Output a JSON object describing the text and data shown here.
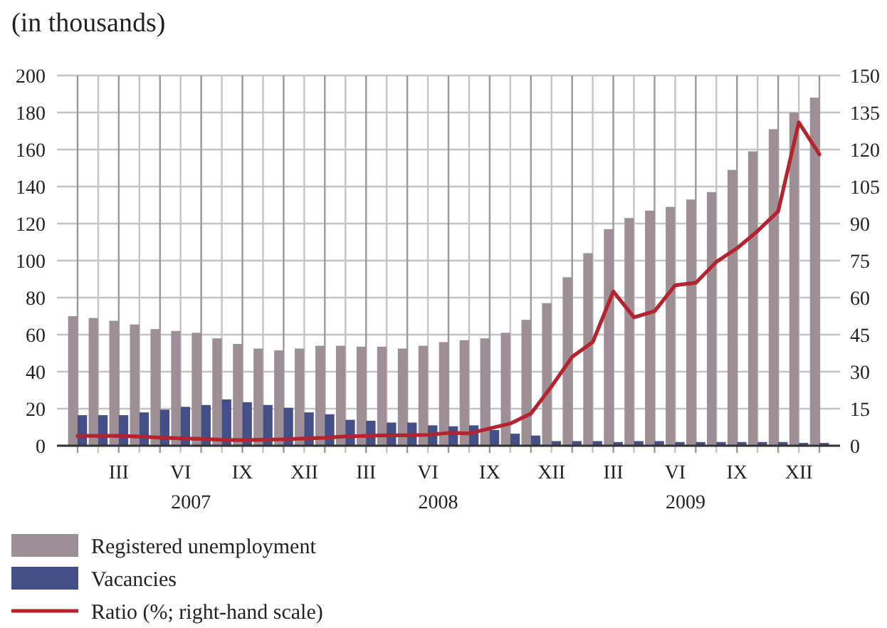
{
  "chart_data": {
    "type": "bar",
    "title": "(in thousands)",
    "categories": [
      null,
      null,
      "III",
      null,
      null,
      "VI",
      null,
      null,
      "IX",
      null,
      null,
      "XII",
      null,
      null,
      "III",
      null,
      null,
      "VI",
      null,
      null,
      "IX",
      null,
      null,
      "XII",
      null,
      null,
      "III",
      null,
      null,
      "VI",
      null,
      null,
      "IX",
      null,
      null,
      "XII",
      null
    ],
    "series": [
      {
        "name": "Registered unemployment",
        "color": "#9e8f97",
        "values": [
          70,
          69,
          67.5,
          65.5,
          63,
          62,
          61,
          58,
          55,
          52.5,
          51.5,
          52.5,
          54,
          54,
          53.5,
          53.5,
          52.5,
          54,
          56,
          57,
          58,
          61,
          68,
          77,
          91,
          104,
          117,
          123,
          127,
          129,
          133,
          137,
          149,
          159,
          171,
          180,
          188
        ]
      },
      {
        "name": "Vacancies",
        "color": "#434f86",
        "values": [
          16.5,
          16.5,
          16.5,
          18,
          19.5,
          21,
          22,
          25,
          23.5,
          22,
          20.5,
          18,
          17,
          14,
          13.5,
          12.5,
          12.5,
          11,
          10.5,
          11,
          8.5,
          6.5,
          5.5,
          2.5,
          2.5,
          2.5,
          2,
          2.5,
          2.5,
          2,
          2,
          2,
          2,
          2,
          2,
          1.5,
          1.5
        ]
      },
      {
        "name": "Ratio (%; right-hand scale)",
        "type": "line",
        "axis": "y2",
        "color": "#b5232e",
        "values": [
          4,
          4,
          4,
          3.7,
          3.3,
          3,
          2.8,
          2.4,
          2.3,
          2.4,
          2.6,
          2.9,
          3.2,
          3.8,
          4,
          4.2,
          4.2,
          4.4,
          5.2,
          5,
          7,
          9,
          13,
          24,
          36,
          42,
          62.5,
          52,
          54.5,
          65,
          66,
          74.5,
          80,
          87,
          95,
          131,
          118
        ]
      }
    ],
    "annotations": [
      "2007",
      "2008",
      "2009"
    ],
    "ylim": [
      0,
      200
    ],
    "yticks": [
      0,
      20,
      40,
      60,
      80,
      100,
      120,
      140,
      160,
      180,
      200
    ],
    "y2lim": [
      0,
      150
    ],
    "y2ticks": [
      0,
      15,
      30,
      45,
      60,
      75,
      90,
      105,
      120,
      135,
      150
    ],
    "grid": true,
    "legend": "bottom left"
  }
}
